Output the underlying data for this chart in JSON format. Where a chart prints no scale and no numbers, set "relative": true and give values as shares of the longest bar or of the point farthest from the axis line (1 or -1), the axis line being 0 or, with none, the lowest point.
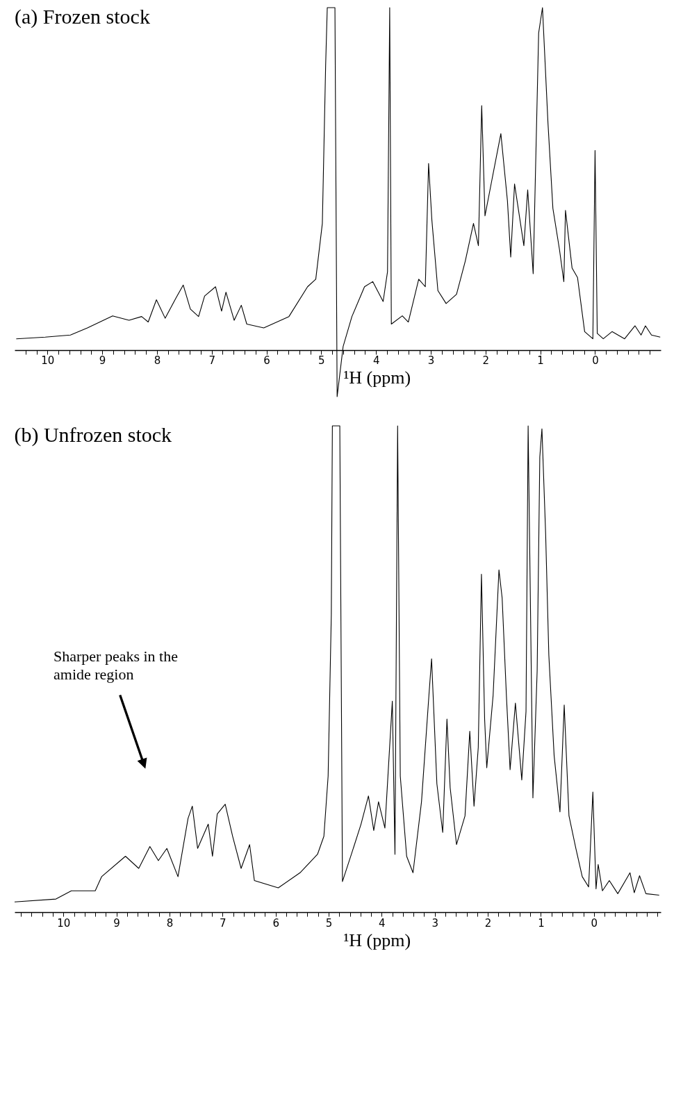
{
  "chart_data": [
    {
      "type": "line",
      "relative": true,
      "title": "(a) Frozen stock",
      "xlabel": "¹H (ppm)",
      "xlim": [
        10.6,
        -1.2
      ],
      "xticks": [
        {
          "value": 10.4,
          "label": null
        },
        {
          "value": 10.2,
          "label": null
        },
        10,
        {
          "value": 9.8,
          "label": null
        },
        {
          "value": 9.6,
          "label": null
        },
        {
          "value": 9.4,
          "label": null
        },
        {
          "value": 9.2,
          "label": null
        },
        9,
        {
          "value": 8.8,
          "label": null
        },
        {
          "value": 8.6,
          "label": null
        },
        {
          "value": 8.4,
          "label": null
        },
        {
          "value": 8.2,
          "label": null
        },
        8,
        {
          "value": 7.8,
          "label": null
        },
        {
          "value": 7.6,
          "label": null
        },
        {
          "value": 7.4,
          "label": null
        },
        {
          "value": 7.2,
          "label": null
        },
        7,
        {
          "value": 6.8,
          "label": null
        },
        {
          "value": 6.6,
          "label": null
        },
        {
          "value": 6.4,
          "label": null
        },
        {
          "value": 6.2,
          "label": null
        },
        6,
        {
          "value": 5.8,
          "label": null
        },
        {
          "value": 5.6,
          "label": null
        },
        {
          "value": 5.4,
          "label": null
        },
        {
          "value": 5.2,
          "label": null
        },
        5,
        {
          "value": 4.8,
          "label": null
        },
        {
          "value": 4.6,
          "label": null
        },
        {
          "value": 4.4,
          "label": null
        },
        {
          "value": 4.2,
          "label": null
        },
        4,
        {
          "value": 3.8,
          "label": null
        },
        {
          "value": 3.6,
          "label": null
        },
        {
          "value": 3.4,
          "label": null
        },
        {
          "value": 3.2,
          "label": null
        },
        3,
        {
          "value": 2.8,
          "label": null
        },
        {
          "value": 2.6,
          "label": null
        },
        {
          "value": 2.4,
          "label": null
        },
        {
          "value": 2.2,
          "label": null
        },
        2,
        {
          "value": 1.8,
          "label": null
        },
        {
          "value": 1.6,
          "label": null
        },
        {
          "value": 1.4,
          "label": null
        },
        {
          "value": 1.2,
          "label": null
        },
        1,
        {
          "value": 0.8,
          "label": null
        },
        {
          "value": 0.6,
          "label": null
        },
        {
          "value": 0.4,
          "label": null
        },
        {
          "value": 0.2,
          "label": null
        },
        0,
        {
          "value": -0.2,
          "label": null
        },
        {
          "value": -0.4,
          "label": null
        },
        {
          "value": -0.6,
          "label": null
        },
        {
          "value": -0.8,
          "label": null
        },
        {
          "value": -1,
          "label": null
        }
      ],
      "x": [
        10.57,
        10.04,
        9.58,
        9.27,
        8.81,
        8.51,
        8.28,
        8.16,
        8.01,
        7.85,
        7.65,
        7.52,
        7.39,
        7.24,
        7.13,
        6.93,
        6.82,
        6.74,
        6.59,
        6.46,
        6.36,
        6.05,
        5.59,
        5.25,
        5.1,
        4.98,
        4.92,
        4.89,
        4.75,
        4.71,
        4.6,
        4.44,
        4.21,
        4.06,
        3.87,
        3.79,
        3.75,
        3.72,
        3.52,
        3.41,
        3.22,
        3.1,
        3.04,
        2.98,
        2.87,
        2.72,
        2.53,
        2.37,
        2.22,
        2.13,
        2.07,
        2.01,
        1.88,
        1.72,
        1.6,
        1.54,
        1.47,
        1.3,
        1.23,
        1.13,
        1.03,
        0.96,
        0.86,
        0.77,
        0.65,
        0.57,
        0.54,
        0.42,
        0.32,
        0.19,
        0.04,
        0,
        -0.04,
        -0.15,
        -0.31,
        -0.54,
        -0.73,
        -0.84,
        -0.92,
        -1.03,
        -1.19
      ],
      "series": [
        {
          "color": "#000000",
          "values": [
            0.033,
            0.038,
            0.044,
            0.065,
            0.1,
            0.087,
            0.098,
            0.082,
            0.147,
            0.093,
            0.153,
            0.19,
            0.12,
            0.098,
            0.158,
            0.185,
            0.114,
            0.169,
            0.087,
            0.131,
            0.076,
            0.065,
            0.098,
            0.185,
            0.207,
            0.37,
            0.83,
            1,
            1,
            -0.136,
            0.011,
            0.098,
            0.185,
            0.2,
            0.142,
            0.229,
            1,
            0.076,
            0.1,
            0.082,
            0.207,
            0.185,
            0.545,
            0.38,
            0.174,
            0.136,
            0.163,
            0.26,
            0.37,
            0.305,
            0.714,
            0.392,
            0.5,
            0.632,
            0.436,
            0.272,
            0.485,
            0.305,
            0.468,
            0.223,
            0.926,
            1,
            0.664,
            0.414,
            0.294,
            0.2,
            0.408,
            0.24,
            0.212,
            0.054,
            0.033,
            0.583,
            0.049,
            0.033,
            0.054,
            0.033,
            0.071,
            0.044,
            0.071,
            0.044,
            0.038
          ]
        }
      ]
    },
    {
      "type": "line",
      "relative": true,
      "title": "(b) Unfrozen stock",
      "xlabel": "¹H (ppm)",
      "xlim": [
        10.92,
        -1.26
      ],
      "xticks": [
        {
          "value": 10.8,
          "label": null
        },
        {
          "value": 10.6,
          "label": null
        },
        {
          "value": 10.4,
          "label": null
        },
        {
          "value": 10.2,
          "label": null
        },
        10,
        {
          "value": 9.8,
          "label": null
        },
        {
          "value": 9.6,
          "label": null
        },
        {
          "value": 9.4,
          "label": null
        },
        {
          "value": 9.2,
          "label": null
        },
        9,
        {
          "value": 8.8,
          "label": null
        },
        {
          "value": 8.6,
          "label": null
        },
        {
          "value": 8.4,
          "label": null
        },
        {
          "value": 8.2,
          "label": null
        },
        8,
        {
          "value": 7.8,
          "label": null
        },
        {
          "value": 7.6,
          "label": null
        },
        {
          "value": 7.4,
          "label": null
        },
        {
          "value": 7.2,
          "label": null
        },
        7,
        {
          "value": 6.8,
          "label": null
        },
        {
          "value": 6.6,
          "label": null
        },
        {
          "value": 6.4,
          "label": null
        },
        {
          "value": 6.2,
          "label": null
        },
        6,
        {
          "value": 5.8,
          "label": null
        },
        {
          "value": 5.6,
          "label": null
        },
        {
          "value": 5.4,
          "label": null
        },
        {
          "value": 5.2,
          "label": null
        },
        5,
        {
          "value": 4.8,
          "label": null
        },
        {
          "value": 4.6,
          "label": null
        },
        {
          "value": 4.4,
          "label": null
        },
        {
          "value": 4.2,
          "label": null
        },
        4,
        {
          "value": 3.8,
          "label": null
        },
        {
          "value": 3.6,
          "label": null
        },
        {
          "value": 3.4,
          "label": null
        },
        {
          "value": 3.2,
          "label": null
        },
        3,
        {
          "value": 2.8,
          "label": null
        },
        {
          "value": 2.6,
          "label": null
        },
        {
          "value": 2.4,
          "label": null
        },
        {
          "value": 2.2,
          "label": null
        },
        2,
        {
          "value": 1.8,
          "label": null
        },
        {
          "value": 1.6,
          "label": null
        },
        {
          "value": 1.4,
          "label": null
        },
        {
          "value": 1.2,
          "label": null
        },
        1,
        {
          "value": 0.8,
          "label": null
        },
        {
          "value": 0.6,
          "label": null
        },
        {
          "value": 0.4,
          "label": null
        },
        {
          "value": 0.2,
          "label": null
        },
        0,
        {
          "value": -0.2,
          "label": null
        },
        {
          "value": -0.4,
          "label": null
        },
        {
          "value": -0.6,
          "label": null
        },
        {
          "value": -0.8,
          "label": null
        },
        {
          "value": -1,
          "label": null
        },
        {
          "value": -1.2,
          "label": null
        }
      ],
      "x": [
        10.92,
        10.14,
        9.85,
        9.4,
        9.28,
        8.83,
        8.58,
        8.37,
        8.21,
        8.05,
        7.84,
        7.65,
        7.57,
        7.47,
        7.27,
        7.19,
        7.1,
        6.95,
        6.81,
        6.65,
        6.49,
        6.4,
        5.95,
        5.54,
        5.21,
        5.09,
        5.01,
        4.95,
        4.93,
        4.79,
        4.74,
        4.56,
        4.39,
        4.25,
        4.15,
        4.06,
        3.94,
        3.8,
        3.75,
        3.7,
        3.65,
        3.53,
        3.41,
        3.25,
        3.11,
        3.06,
        2.96,
        2.85,
        2.77,
        2.71,
        2.59,
        2.43,
        2.34,
        2.26,
        2.18,
        2.12,
        2.06,
        2.02,
        1.9,
        1.79,
        1.73,
        1.65,
        1.58,
        1.48,
        1.36,
        1.28,
        1.24,
        1.15,
        1.07,
        1.02,
        0.98,
        0.91,
        0.85,
        0.75,
        0.64,
        0.56,
        0.47,
        0.34,
        0.22,
        0.1,
        0.02,
        -0.04,
        -0.08,
        -0.16,
        -0.29,
        -0.45,
        -0.68,
        -0.76,
        -0.86,
        -0.98,
        -1.23
      ],
      "series": [
        {
          "color": "#000000",
          "values": [
            0.021,
            0.027,
            0.044,
            0.044,
            0.073,
            0.115,
            0.09,
            0.135,
            0.106,
            0.131,
            0.073,
            0.193,
            0.218,
            0.131,
            0.181,
            0.115,
            0.202,
            0.222,
            0.156,
            0.09,
            0.139,
            0.065,
            0.05,
            0.081,
            0.119,
            0.156,
            0.28,
            0.612,
            1,
            1,
            0.063,
            0.123,
            0.181,
            0.239,
            0.168,
            0.227,
            0.173,
            0.434,
            0.119,
            1,
            0.28,
            0.115,
            0.081,
            0.227,
            0.446,
            0.521,
            0.264,
            0.164,
            0.397,
            0.256,
            0.139,
            0.198,
            0.372,
            0.218,
            0.339,
            0.695,
            0.397,
            0.297,
            0.446,
            0.704,
            0.646,
            0.446,
            0.293,
            0.43,
            0.272,
            0.413,
            1,
            0.235,
            0.496,
            0.936,
            0.994,
            0.778,
            0.529,
            0.322,
            0.206,
            0.426,
            0.198,
            0.131,
            0.073,
            0.052,
            0.247,
            0.048,
            0.098,
            0.044,
            0.065,
            0.038,
            0.081,
            0.04,
            0.075,
            0.038,
            0.035
          ]
        }
      ],
      "annotations": [
        "Sharper peaks in the amide region"
      ]
    }
  ]
}
